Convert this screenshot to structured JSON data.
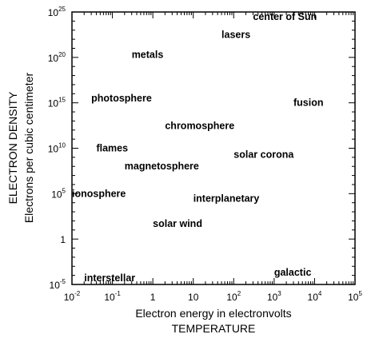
{
  "chart_data": {
    "type": "scatter",
    "xlabel": "Electron energy in electronvolts",
    "xlabel2": "TEMPERATURE",
    "ylabel": "ELECTRON DENSITY",
    "ylabel2": "Electrons per cubic centimeter",
    "x_scale": "log",
    "y_scale": "log",
    "xlim": [
      0.01,
      100000
    ],
    "ylim": [
      1e-05,
      1e+25
    ],
    "grid": false,
    "x_ticks": [
      {
        "value": 0.01,
        "base": "10",
        "exp": "-2"
      },
      {
        "value": 0.1,
        "base": "10",
        "exp": "-1"
      },
      {
        "value": 1,
        "base": "1",
        "exp": ""
      },
      {
        "value": 10,
        "base": "10",
        "exp": ""
      },
      {
        "value": 100,
        "base": "10",
        "exp": "2"
      },
      {
        "value": 1000,
        "base": "10",
        "exp": "3"
      },
      {
        "value": 10000,
        "base": "10",
        "exp": "4"
      },
      {
        "value": 100000,
        "base": "10",
        "exp": "5"
      }
    ],
    "y_ticks": [
      {
        "value": 1e-05,
        "base": "10",
        "exp": "-5"
      },
      {
        "value": 1,
        "base": "1",
        "exp": ""
      },
      {
        "value": 100000,
        "base": "10",
        "exp": "5"
      },
      {
        "value": 10000000000.0,
        "base": "10",
        "exp": "10"
      },
      {
        "value": 1000000000000000.0,
        "base": "10",
        "exp": "15"
      },
      {
        "value": 1e+20,
        "base": "10",
        "exp": "20"
      },
      {
        "value": 1e+25,
        "base": "10",
        "exp": "25"
      }
    ],
    "regions": [
      {
        "label": "center of Sun",
        "x": 300,
        "y": 3e+24
      },
      {
        "label": "lasers",
        "x": 50,
        "y": 3e+22
      },
      {
        "label": "metals",
        "x": 0.3,
        "y": 2e+20
      },
      {
        "label": "photosphere",
        "x": 0.03,
        "y": 3000000000000000.0
      },
      {
        "label": "fusion",
        "x": 3000,
        "y": 1000000000000000.0
      },
      {
        "label": "chromosphere",
        "x": 2,
        "y": 3000000000000.0
      },
      {
        "label": "flames",
        "x": 0.04,
        "y": 10000000000.0
      },
      {
        "label": "solar corona",
        "x": 100,
        "y": 2000000000.0
      },
      {
        "label": "magnetosphere",
        "x": 0.2,
        "y": 100000000.0
      },
      {
        "label": "ionosphere",
        "x": 0.01,
        "y": 100000.0
      },
      {
        "label": "interplanetary",
        "x": 10,
        "y": 30000.0
      },
      {
        "label": "solar wind",
        "x": 1,
        "y": 50.0
      },
      {
        "label": "galactic",
        "x": 1000,
        "y": 0.0002
      },
      {
        "label": "interstellar",
        "x": 0.02,
        "y": 5e-05
      }
    ]
  }
}
